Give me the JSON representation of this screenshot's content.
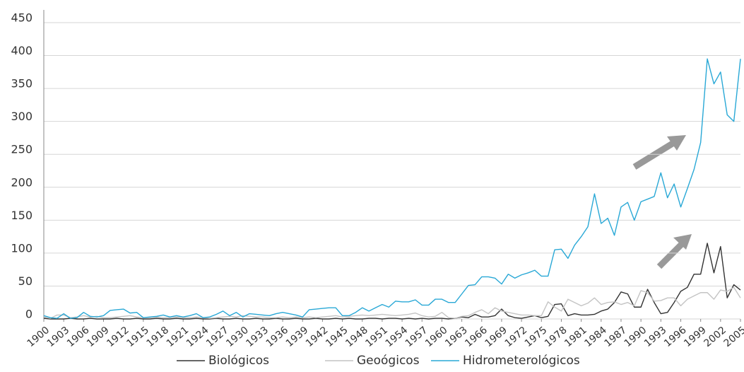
{
  "chart_data": {
    "type": "line",
    "x": [
      1900,
      1901,
      1902,
      1903,
      1904,
      1905,
      1906,
      1907,
      1908,
      1909,
      1910,
      1911,
      1912,
      1913,
      1914,
      1915,
      1916,
      1917,
      1918,
      1919,
      1920,
      1921,
      1922,
      1923,
      1924,
      1925,
      1926,
      1927,
      1928,
      1929,
      1930,
      1931,
      1932,
      1933,
      1934,
      1935,
      1936,
      1937,
      1938,
      1939,
      1940,
      1941,
      1942,
      1943,
      1944,
      1945,
      1946,
      1947,
      1948,
      1949,
      1950,
      1951,
      1952,
      1953,
      1954,
      1955,
      1956,
      1957,
      1958,
      1959,
      1960,
      1961,
      1962,
      1963,
      1964,
      1965,
      1966,
      1967,
      1968,
      1969,
      1970,
      1971,
      1972,
      1973,
      1974,
      1975,
      1976,
      1977,
      1978,
      1979,
      1980,
      1981,
      1982,
      1983,
      1984,
      1985,
      1986,
      1987,
      1988,
      1989,
      1990,
      1991,
      1992,
      1993,
      1994,
      1995,
      1996,
      1997,
      1998,
      1999,
      2000,
      2001,
      2002,
      2003,
      2004,
      2005
    ],
    "series": [
      {
        "name": "Biológicos",
        "color": "#333333",
        "values": [
          1,
          0,
          0,
          0,
          1,
          0,
          0,
          1,
          0,
          0,
          0,
          1,
          0,
          0,
          1,
          0,
          0,
          1,
          0,
          0,
          1,
          0,
          0,
          1,
          0,
          0,
          1,
          0,
          0,
          1,
          0,
          0,
          1,
          0,
          0,
          1,
          0,
          0,
          1,
          0,
          0,
          1,
          0,
          0,
          1,
          0,
          1,
          0,
          0,
          1,
          1,
          0,
          1,
          1,
          0,
          1,
          0,
          1,
          0,
          1,
          1,
          0,
          1,
          3,
          2,
          7,
          3,
          3,
          5,
          15,
          5,
          2,
          1,
          3,
          5,
          2,
          4,
          22,
          23,
          5,
          8,
          6,
          6,
          7,
          12,
          15,
          25,
          41,
          38,
          18,
          18,
          45,
          25,
          8,
          10,
          25,
          42,
          48,
          68,
          68,
          115,
          70,
          110,
          32,
          52,
          44
        ]
      },
      {
        "name": "Geoógicos",
        "color": "#c4c4c4",
        "values": [
          3,
          1,
          6,
          6,
          2,
          3,
          5,
          3,
          4,
          2,
          2,
          3,
          4,
          5,
          3,
          2,
          2,
          3,
          2,
          2,
          3,
          2,
          2,
          3,
          2,
          1,
          2,
          3,
          4,
          3,
          5,
          4,
          3,
          3,
          2,
          2,
          3,
          2,
          3,
          2,
          3,
          2,
          3,
          4,
          5,
          3,
          4,
          5,
          6,
          5,
          6,
          7,
          6,
          5,
          6,
          7,
          9,
          5,
          3,
          4,
          10,
          2,
          1,
          4,
          5,
          10,
          14,
          8,
          17,
          12,
          10,
          8,
          6,
          6,
          5,
          5,
          26,
          18,
          12,
          30,
          25,
          20,
          24,
          32,
          22,
          25,
          26,
          22,
          25,
          20,
          43,
          40,
          27,
          28,
          32,
          32,
          20,
          30,
          35,
          40,
          40,
          30,
          44,
          42,
          48,
          32
        ]
      },
      {
        "name": "Hidrometerológicos",
        "color": "#29a8d6",
        "values": [
          5,
          2,
          1,
          8,
          1,
          2,
          10,
          4,
          3,
          5,
          13,
          14,
          15,
          9,
          10,
          2,
          3,
          4,
          6,
          3,
          5,
          3,
          5,
          8,
          2,
          3,
          7,
          12,
          5,
          10,
          3,
          8,
          7,
          6,
          5,
          8,
          10,
          8,
          6,
          3,
          14,
          15,
          16,
          17,
          17,
          5,
          5,
          10,
          17,
          12,
          17,
          22,
          18,
          27,
          26,
          26,
          29,
          21,
          21,
          30,
          30,
          25,
          25,
          38,
          51,
          52,
          64,
          64,
          62,
          53,
          68,
          62,
          67,
          70,
          74,
          65,
          65,
          105,
          106,
          92,
          112,
          125,
          140,
          190,
          145,
          153,
          127,
          170,
          177,
          150,
          178,
          182,
          186,
          222,
          184,
          205,
          170,
          198,
          227,
          268,
          395,
          357,
          375,
          310,
          300,
          395
        ]
      }
    ],
    "xlim": [
      1900,
      2005
    ],
    "xticks": [
      1900,
      1903,
      1906,
      1909,
      1912,
      1915,
      1918,
      1921,
      1924,
      1927,
      1930,
      1933,
      1936,
      1939,
      1942,
      1945,
      1948,
      1951,
      1954,
      1957,
      1960,
      1963,
      1966,
      1969,
      1972,
      1975,
      1978,
      1981,
      1984,
      1987,
      1990,
      1993,
      1996,
      1999,
      2002,
      2005
    ],
    "ylim": [
      0,
      450
    ],
    "yticks": [
      0,
      50,
      100,
      150,
      200,
      250,
      300,
      350,
      400,
      450
    ],
    "grid": true,
    "legend": "bottom"
  }
}
